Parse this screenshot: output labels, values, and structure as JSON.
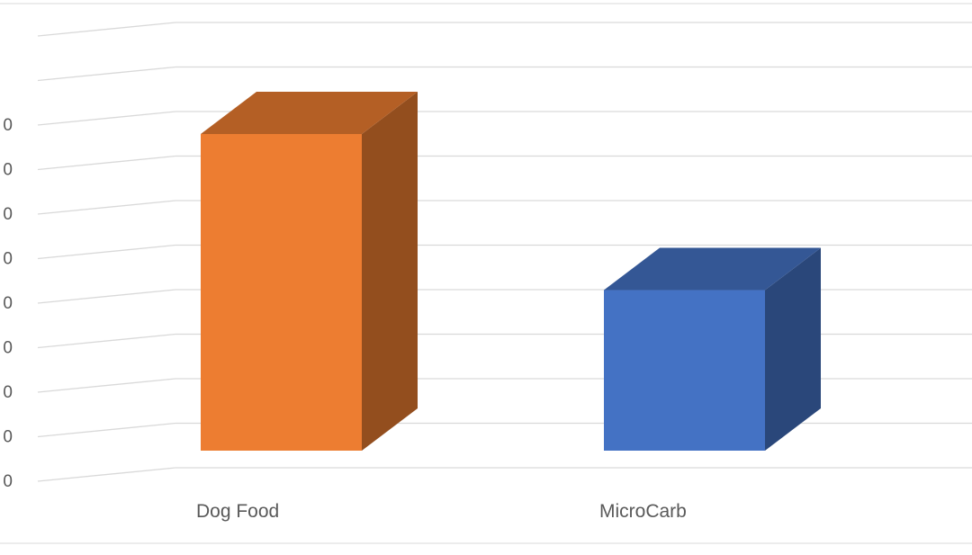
{
  "chart_data": {
    "type": "bar",
    "style": "3d-column",
    "categories": [
      "Dog Food",
      "MicroCarb"
    ],
    "series": [
      {
        "values": [
          7.1,
          3.6
        ]
      }
    ],
    "bar_colors": [
      "#ED7D31",
      "#4472C4"
    ],
    "y_tick_labels": [
      "0",
      "0",
      "0",
      "0",
      "0",
      "0",
      "0",
      "0",
      "0"
    ],
    "ylim": [
      0,
      10
    ],
    "grid": true,
    "legend": "none"
  }
}
